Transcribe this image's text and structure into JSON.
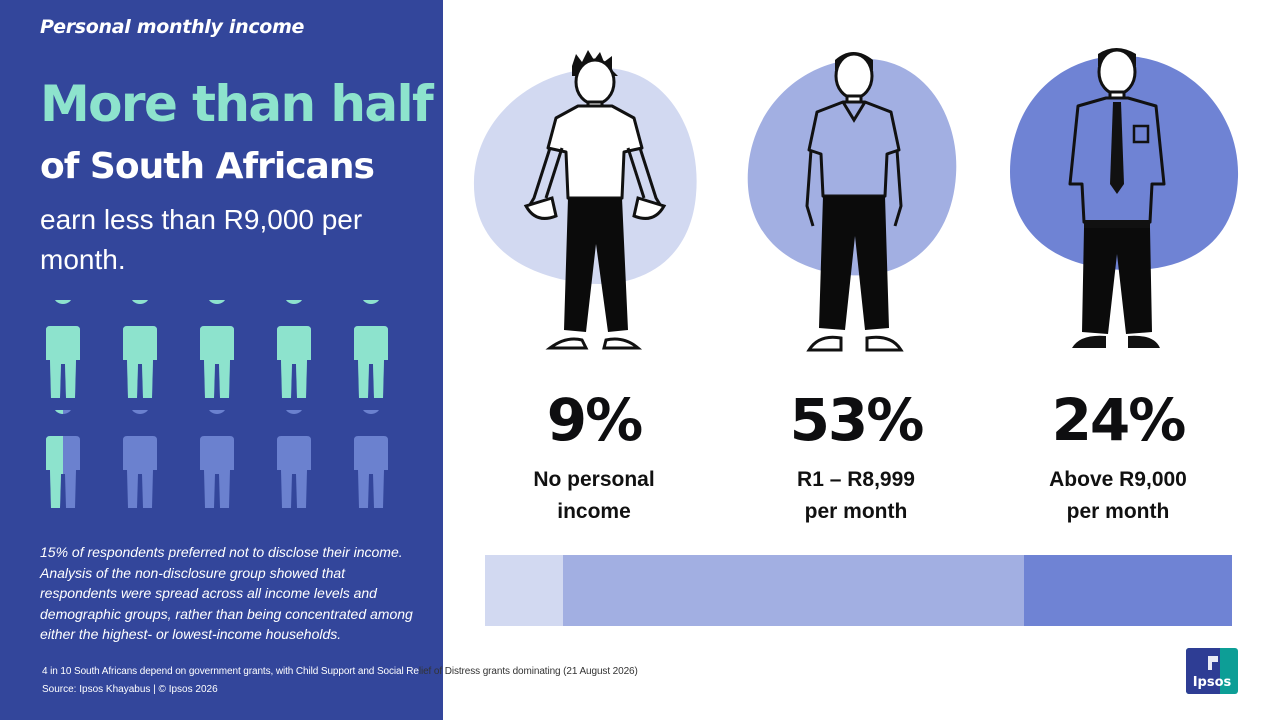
{
  "left": {
    "kicker": "Personal monthly income",
    "headline_highlight": "More than half",
    "headline_bold": "of South Africans",
    "headline_rest": "earn less than R9,000 per month.",
    "icon_grid": {
      "rows": 2,
      "cols": 5,
      "filled_count": 5.5,
      "filled_color": "#8de3cd",
      "empty_color": "#6b81cf",
      "icon": "person-icon"
    },
    "disclosure_note": "15% of respondents preferred not to disclose their income. Analysis of the non-disclosure group showed that respondents were spread across all income levels and demographic groups, rather than being concentrated among either the highest- or lowest-income households.",
    "footnote_left": "4 in 10 South Africans depend on government grants, with Child Support and Social Re",
    "footnote_right": "lief of Distress grants dominating (21 August 2026)",
    "source": "Source: Ipsos Khayabus  |  © Ipsos 2026"
  },
  "stats": [
    {
      "value": "9%",
      "label_line1": "No personal",
      "label_line2": "income",
      "color": "#d2d9f1",
      "share": 9,
      "icon": "man-with-empty-pockets-icon"
    },
    {
      "value": "53%",
      "label_line1": "R1 – R8,999",
      "label_line2": "per month",
      "color": "#a2afe2",
      "share": 53,
      "icon": "man-in-polo-shirt-icon"
    },
    {
      "value": "24%",
      "label_line1": "Above R9,000",
      "label_line2": "per month",
      "color": "#6f83d4",
      "share": 24,
      "icon": "man-in-shirt-and-tie-icon"
    }
  ],
  "logo": {
    "text": "Ipsos"
  },
  "colors": {
    "panel": "#33469b",
    "accent": "#8de3cd"
  }
}
